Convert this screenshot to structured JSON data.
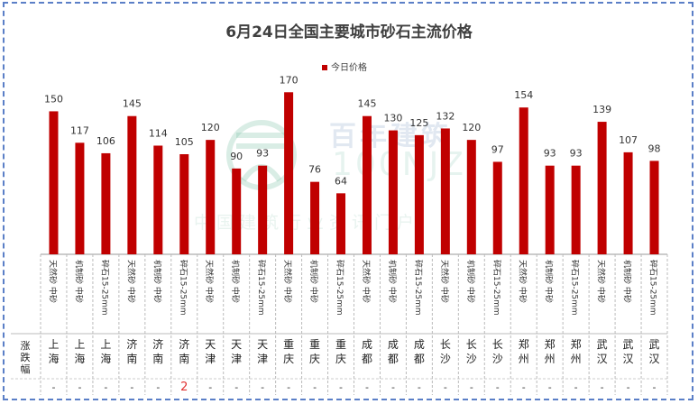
{
  "title": "6月24日全国主要城市砂石主流价格",
  "legend": {
    "label": "今日价格",
    "color": "#c00000"
  },
  "watermark": {
    "name": "百年建筑",
    "code": "100NJZ",
    "slogan": "中国建筑行业资讯门户"
  },
  "table": {
    "change_header": "涨跌幅",
    "cities": [
      "上海",
      "上海",
      "上海",
      "济南",
      "济南",
      "济南",
      "天津",
      "天津",
      "天津",
      "重庆",
      "重庆",
      "重庆",
      "成都",
      "成都",
      "成都",
      "长沙",
      "长沙",
      "长沙",
      "郑州",
      "郑州",
      "郑州",
      "武汉",
      "武汉",
      "武汉"
    ],
    "changes": [
      "-",
      "-",
      "-",
      "-",
      "-",
      "2",
      "-",
      "-",
      "-",
      "-",
      "-",
      "-",
      "-",
      "-",
      "-",
      "-",
      "-",
      "-",
      "-",
      "-",
      "-",
      "-",
      "-",
      "-"
    ],
    "change_up_color": "#e03030"
  },
  "chart_data": {
    "type": "bar",
    "title": "6月24日全国主要城市砂石主流价格",
    "categories": [
      "天然砂 中砂",
      "机制砂 中砂",
      "碎石15-25mm",
      "天然砂 中砂",
      "机制砂 中砂",
      "碎石15-25mm",
      "天然砂 中砂",
      "机制砂 中砂",
      "碎石15-25mm",
      "天然砂 中砂",
      "机制砂 中砂",
      "碎石15-25mm",
      "天然砂 中砂",
      "机制砂 中砂",
      "碎石15-25mm",
      "天然砂 中砂",
      "机制砂 中砂",
      "碎石15-25mm",
      "天然砂 中砂",
      "机制砂 中砂",
      "碎石15-25mm",
      "天然砂 中砂",
      "机制砂 中砂",
      "碎石15-25mm"
    ],
    "series": [
      {
        "name": "今日价格",
        "values": [
          150,
          117,
          106,
          145,
          114,
          105,
          120,
          90,
          93,
          170,
          76,
          64,
          145,
          130,
          125,
          132,
          120,
          97,
          154,
          93,
          93,
          139,
          107,
          98
        ]
      }
    ],
    "ylim": [
      0,
      175
    ],
    "grid": false,
    "legend_position": "top-center",
    "bar_color": "#c00000"
  }
}
